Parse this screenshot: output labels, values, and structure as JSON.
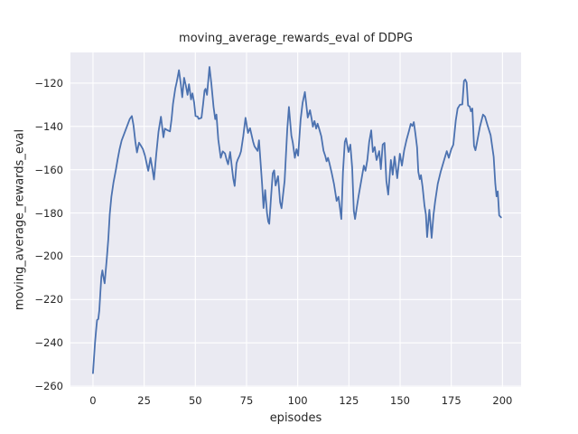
{
  "chart_data": {
    "type": "line",
    "title": "moving_average_rewards_eval of DDPG",
    "xlabel": "episodes",
    "ylabel": "moving_average_rewards_eval",
    "xlim": [
      -11,
      209.1
    ],
    "ylim": [
      -260.4,
      -105.8
    ],
    "grid": true,
    "legend_position": "none",
    "x_ticks": {
      "values": [
        0,
        25,
        50,
        75,
        100,
        125,
        150,
        175,
        200
      ],
      "labels": [
        "0",
        "25",
        "50",
        "75",
        "100",
        "125",
        "150",
        "175",
        "200"
      ]
    },
    "y_ticks": {
      "values": [
        -120,
        -140,
        -160,
        -180,
        -200,
        -220,
        -240,
        -260
      ],
      "labels": [
        "−120",
        "−140",
        "−160",
        "−180",
        "−200",
        "−220",
        "−240",
        "−260"
      ]
    },
    "style": {
      "figure_background": "#ffffff",
      "plot_background": "#eaeaf2",
      "grid_color": "#ffffff",
      "text_color": "#262626",
      "line_color": "#4c72b0",
      "line_width": 1.8
    },
    "series": [
      {
        "name": "moving_average_rewards_eval",
        "color": "#4c72b0",
        "points": [
          [
            0,
            -254
          ],
          [
            0.5,
            -247
          ],
          [
            1,
            -240
          ],
          [
            1.5,
            -234.5
          ],
          [
            2,
            -229.5
          ],
          [
            2.6,
            -229
          ],
          [
            3.1,
            -225
          ],
          [
            3.6,
            -217
          ],
          [
            4.1,
            -209.5
          ],
          [
            4.6,
            -206.5
          ],
          [
            5.1,
            -209.5
          ],
          [
            5.7,
            -212.5
          ],
          [
            6.2,
            -207
          ],
          [
            6.8,
            -200.5
          ],
          [
            7.5,
            -192
          ],
          [
            8.2,
            -180.5
          ],
          [
            9,
            -172.5
          ],
          [
            10,
            -166
          ],
          [
            11.2,
            -160
          ],
          [
            12,
            -155.5
          ],
          [
            13,
            -150.5
          ],
          [
            14,
            -146.5
          ],
          [
            15,
            -144
          ],
          [
            16,
            -141.5
          ],
          [
            17,
            -139
          ],
          [
            18,
            -136.5
          ],
          [
            19,
            -135.2
          ],
          [
            19.8,
            -139.5
          ],
          [
            20.7,
            -147
          ],
          [
            21.5,
            -152
          ],
          [
            22.5,
            -147.5
          ],
          [
            23.5,
            -149
          ],
          [
            24.4,
            -150.5
          ],
          [
            25.4,
            -153.5
          ],
          [
            26.2,
            -157
          ],
          [
            27,
            -160.5
          ],
          [
            28.1,
            -154.5
          ],
          [
            29,
            -159.5
          ],
          [
            29.8,
            -164.5
          ],
          [
            30.9,
            -153
          ],
          [
            32,
            -142.5
          ],
          [
            33.2,
            -135.5
          ],
          [
            34.4,
            -145
          ],
          [
            35.1,
            -141
          ],
          [
            36.1,
            -141.6
          ],
          [
            37.6,
            -142.3
          ],
          [
            38.4,
            -136.5
          ],
          [
            39.1,
            -129.5
          ],
          [
            40.2,
            -122.5
          ],
          [
            40.9,
            -119.5
          ],
          [
            42,
            -114
          ],
          [
            42.9,
            -120.5
          ],
          [
            43.6,
            -126.5
          ],
          [
            44.5,
            -117.5
          ],
          [
            45.4,
            -121.3
          ],
          [
            46.2,
            -125.4
          ],
          [
            46.9,
            -120.5
          ],
          [
            47.9,
            -127.5
          ],
          [
            48.6,
            -124.7
          ],
          [
            49.4,
            -128.9
          ],
          [
            50.1,
            -135.2
          ],
          [
            51.1,
            -135.4
          ],
          [
            51.6,
            -136.5
          ],
          [
            53,
            -136
          ],
          [
            53.8,
            -129.6
          ],
          [
            54.5,
            -123.4
          ],
          [
            55,
            -122.6
          ],
          [
            55.7,
            -125.4
          ],
          [
            56.9,
            -112.5
          ],
          [
            57.8,
            -120
          ],
          [
            58.9,
            -131
          ],
          [
            59.7,
            -136.6
          ],
          [
            60.3,
            -134.5
          ],
          [
            61.2,
            -146
          ],
          [
            62.4,
            -154.5
          ],
          [
            63.4,
            -151.5
          ],
          [
            64.5,
            -152.5
          ],
          [
            65.3,
            -155.5
          ],
          [
            66,
            -157.5
          ],
          [
            67,
            -151.8
          ],
          [
            68,
            -160
          ],
          [
            68.5,
            -164
          ],
          [
            69.2,
            -167.5
          ],
          [
            70.1,
            -157
          ],
          [
            70.7,
            -155.3
          ],
          [
            71.6,
            -153.5
          ],
          [
            72.3,
            -151.5
          ],
          [
            73.4,
            -144.5
          ],
          [
            74.5,
            -136
          ],
          [
            75.7,
            -143
          ],
          [
            76.7,
            -140.8
          ],
          [
            78.2,
            -147
          ],
          [
            78.9,
            -149.2
          ],
          [
            80.4,
            -151.3
          ],
          [
            81.1,
            -146.4
          ],
          [
            82.6,
            -166.6
          ],
          [
            83.3,
            -177.7
          ],
          [
            84.1,
            -169.4
          ],
          [
            85,
            -180
          ],
          [
            85.6,
            -184
          ],
          [
            86.1,
            -185
          ],
          [
            87,
            -172.2
          ],
          [
            87.8,
            -161.7
          ],
          [
            88.5,
            -160.3
          ],
          [
            89.2,
            -167.3
          ],
          [
            90.4,
            -163
          ],
          [
            91.4,
            -175
          ],
          [
            92.1,
            -177.8
          ],
          [
            93.6,
            -165.2
          ],
          [
            94.9,
            -141.3
          ],
          [
            95.7,
            -131
          ],
          [
            96.9,
            -144.2
          ],
          [
            97.6,
            -147.5
          ],
          [
            98.6,
            -154.5
          ],
          [
            99.4,
            -150.5
          ],
          [
            100.2,
            -153.5
          ],
          [
            101.4,
            -137
          ],
          [
            102.4,
            -129
          ],
          [
            103.5,
            -124.1
          ],
          [
            104.9,
            -135.9
          ],
          [
            106,
            -132.5
          ],
          [
            106.8,
            -136.5
          ],
          [
            107.4,
            -140.1
          ],
          [
            108.2,
            -137.5
          ],
          [
            109,
            -141
          ],
          [
            109.7,
            -138.7
          ],
          [
            110.6,
            -141.5
          ],
          [
            111.5,
            -144.5
          ],
          [
            112.6,
            -151.2
          ],
          [
            113.5,
            -153.8
          ],
          [
            114.1,
            -156.1
          ],
          [
            114.8,
            -154.5
          ],
          [
            115.5,
            -157
          ],
          [
            116.6,
            -161.5
          ],
          [
            117.7,
            -166.5
          ],
          [
            119,
            -174.4
          ],
          [
            119.9,
            -172.5
          ],
          [
            120.8,
            -179
          ],
          [
            121.3,
            -182.8
          ],
          [
            122.1,
            -161
          ],
          [
            123,
            -147.2
          ],
          [
            123.6,
            -145.5
          ],
          [
            124.8,
            -151.8
          ],
          [
            125.7,
            -148.4
          ],
          [
            126.6,
            -159
          ],
          [
            127.4,
            -179
          ],
          [
            128,
            -182.8
          ],
          [
            129,
            -176.5
          ],
          [
            129.7,
            -172.3
          ],
          [
            131,
            -165.2
          ],
          [
            132.3,
            -158.1
          ],
          [
            133.1,
            -160.5
          ],
          [
            134,
            -155.5
          ],
          [
            134.9,
            -147.2
          ],
          [
            135.9,
            -141.8
          ],
          [
            136.7,
            -151.8
          ],
          [
            137.6,
            -149.5
          ],
          [
            138.5,
            -155.5
          ],
          [
            139.8,
            -151.4
          ],
          [
            140.6,
            -159.7
          ],
          [
            141.5,
            -148.4
          ],
          [
            142.4,
            -147.6
          ],
          [
            143.3,
            -165.2
          ],
          [
            144.2,
            -171.5
          ],
          [
            145.5,
            -155.5
          ],
          [
            146.4,
            -162.3
          ],
          [
            147.3,
            -153.9
          ],
          [
            148.6,
            -163.9
          ],
          [
            149.9,
            -152.6
          ],
          [
            150.9,
            -158.1
          ],
          [
            152,
            -151
          ],
          [
            153.2,
            -146
          ],
          [
            154.3,
            -142.2
          ],
          [
            155.2,
            -138.8
          ],
          [
            156,
            -139.8
          ],
          [
            156.7,
            -138
          ],
          [
            157.5,
            -143.5
          ],
          [
            158.3,
            -149.7
          ],
          [
            158.9,
            -161
          ],
          [
            159.6,
            -164.4
          ],
          [
            160.2,
            -162.5
          ],
          [
            161,
            -168.1
          ],
          [
            161.9,
            -176.5
          ],
          [
            162.6,
            -180.7
          ],
          [
            163.2,
            -191.1
          ],
          [
            164.3,
            -178.5
          ],
          [
            165.4,
            -191.5
          ],
          [
            166.3,
            -181
          ],
          [
            167.1,
            -174.8
          ],
          [
            168.4,
            -166.5
          ],
          [
            169.8,
            -161
          ],
          [
            171.5,
            -155.5
          ],
          [
            172.8,
            -151.4
          ],
          [
            173.8,
            -154.5
          ],
          [
            175,
            -150.5
          ],
          [
            176,
            -148.4
          ],
          [
            177.2,
            -137.2
          ],
          [
            178.1,
            -131.7
          ],
          [
            179.2,
            -130
          ],
          [
            180.4,
            -129.8
          ],
          [
            181.2,
            -119
          ],
          [
            181.8,
            -118.3
          ],
          [
            182.5,
            -119.7
          ],
          [
            183.2,
            -130.3
          ],
          [
            184,
            -130.8
          ],
          [
            184.6,
            -133
          ],
          [
            185.3,
            -131.7
          ],
          [
            186.1,
            -149
          ],
          [
            186.8,
            -151
          ],
          [
            187.5,
            -147.7
          ],
          [
            189,
            -140.1
          ],
          [
            190.5,
            -134.5
          ],
          [
            191.5,
            -135.5
          ],
          [
            192.7,
            -139.5
          ],
          [
            194.2,
            -144
          ],
          [
            195.7,
            -154
          ],
          [
            196.5,
            -166.5
          ],
          [
            197.1,
            -172.3
          ],
          [
            197.7,
            -170
          ],
          [
            198.4,
            -181.1
          ],
          [
            199.3,
            -182
          ]
        ]
      }
    ]
  }
}
